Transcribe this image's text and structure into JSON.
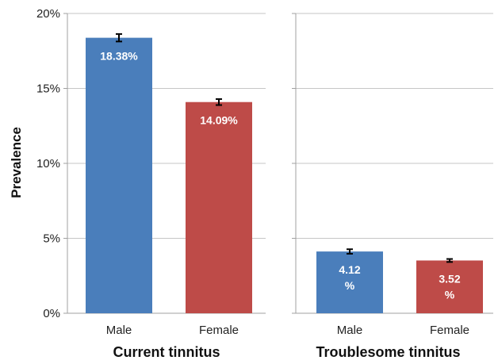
{
  "chart_data": {
    "type": "bar",
    "ylabel": "Prevalence",
    "ylim": [
      0,
      20
    ],
    "yticks": [
      "0%",
      "5%",
      "10%",
      "15%",
      "20%"
    ],
    "yticks_values": [
      0,
      5,
      10,
      15,
      20
    ],
    "grid": true,
    "colors": {
      "Male": "#4a7ebb",
      "Female": "#be4b48"
    },
    "groups": [
      {
        "name": "Current tinnitus",
        "categories": [
          "Male",
          "Female"
        ],
        "values": [
          18.38,
          14.09
        ],
        "errors": [
          0.25,
          0.2
        ],
        "labels": [
          [
            "18.38%"
          ],
          [
            "14.09%"
          ]
        ]
      },
      {
        "name": "Troublesome tinnitus",
        "categories": [
          "Male",
          "Female"
        ],
        "values": [
          4.12,
          3.52
        ],
        "errors": [
          0.15,
          0.1
        ],
        "labels": [
          [
            "4.12",
            "%"
          ],
          [
            "3.52",
            "%"
          ]
        ]
      }
    ]
  }
}
